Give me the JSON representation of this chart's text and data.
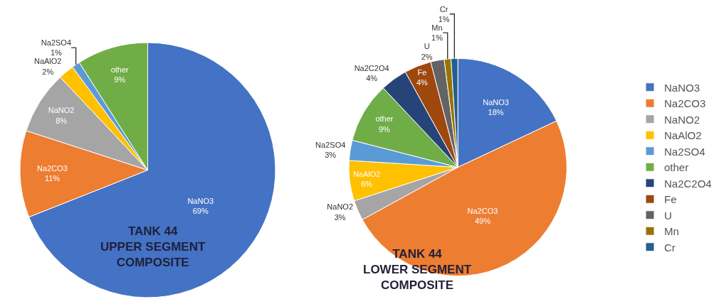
{
  "chart_data": [
    {
      "type": "pie",
      "title": "TANK 44\nUPPER SEGMENT\nCOMPOSITE",
      "categories": [
        "NaNO3",
        "Na2CO3",
        "NaNO2",
        "NaAlO2",
        "Na2SO4",
        "other"
      ],
      "values": [
        69,
        11,
        8,
        2,
        1,
        9
      ],
      "value_labels": [
        "69%",
        "11%",
        "8%",
        "2%",
        "1%",
        "9%"
      ],
      "colors": [
        "#4472c4",
        "#ed7d31",
        "#a5a5a5",
        "#ffc000",
        "#5b9bd5",
        "#70ad47"
      ],
      "legend": false
    },
    {
      "type": "pie",
      "title": "TANK 44\nLOWER SEGMENT\nCOMPOSITE",
      "categories": [
        "NaNO3",
        "Na2CO3",
        "NaNO2",
        "NaAlO2",
        "Na2SO4",
        "other",
        "Na2C2O4",
        "Fe",
        "U",
        "Mn",
        "Cr"
      ],
      "values": [
        18,
        49,
        3,
        6,
        3,
        9,
        4,
        4,
        2,
        1,
        1
      ],
      "value_labels": [
        "18%",
        "49%",
        "3%",
        "6%",
        "3%",
        "9%",
        "4%",
        "4%",
        "2%",
        "1%",
        "1%"
      ],
      "colors": [
        "#4472c4",
        "#ed7d31",
        "#a5a5a5",
        "#ffc000",
        "#5b9bd5",
        "#70ad47",
        "#264478",
        "#9e480e",
        "#636363",
        "#997300",
        "#255e91"
      ],
      "legend": "right"
    }
  ]
}
